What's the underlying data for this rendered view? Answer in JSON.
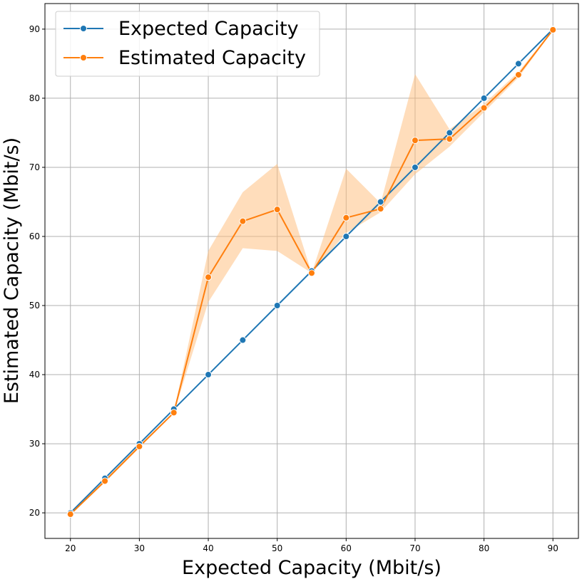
{
  "chart_data": {
    "type": "line",
    "title": "",
    "xlabel": "Expected Capacity (Mbit/s)",
    "ylabel": "Estimated Capacity (Mbit/s)",
    "xlim": [
      16.3,
      93.7
    ],
    "ylim": [
      16.3,
      93.7
    ],
    "xticks": [
      20,
      30,
      40,
      50,
      60,
      70,
      80,
      90
    ],
    "yticks": [
      20,
      30,
      40,
      50,
      60,
      70,
      80,
      90
    ],
    "grid": true,
    "legend": "top-left",
    "x": [
      20,
      25,
      30,
      35,
      40,
      45,
      50,
      55,
      60,
      65,
      70,
      75,
      80,
      85,
      90
    ],
    "series": [
      {
        "name": "Expected Capacity",
        "color": "#1f77b4",
        "marker": "circle",
        "values": [
          20,
          25,
          30,
          35,
          40,
          45,
          50,
          55,
          60,
          65,
          70,
          75,
          80,
          85,
          90
        ]
      },
      {
        "name": "Estimated Capacity",
        "color": "#ff7f0e",
        "marker": "circle",
        "values": [
          19.8,
          24.6,
          29.6,
          34.5,
          54.1,
          62.2,
          63.9,
          54.7,
          62.7,
          64.0,
          73.9,
          74.1,
          78.6,
          83.4,
          89.9
        ],
        "band_lower": [
          19.7,
          24.4,
          29.4,
          34.4,
          50.5,
          58.3,
          57.9,
          54.7,
          60.5,
          63.5,
          69.0,
          73.0,
          78.0,
          83.0,
          89.8
        ],
        "band_upper": [
          19.9,
          24.8,
          29.8,
          34.6,
          57.9,
          66.4,
          70.5,
          54.7,
          69.8,
          64.8,
          83.5,
          75.5,
          79.2,
          83.8,
          90.0
        ],
        "band_color": "#ffbb78"
      }
    ]
  }
}
